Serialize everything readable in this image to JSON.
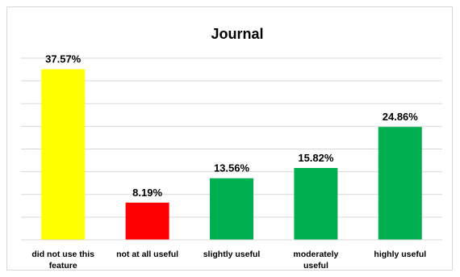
{
  "chart_data": {
    "type": "bar",
    "title": "Journal",
    "categories": [
      [
        "did not use this",
        "feature"
      ],
      [
        "not at all useful"
      ],
      [
        "slightly useful"
      ],
      [
        "moderately",
        "useful"
      ],
      [
        "highly useful"
      ]
    ],
    "values": [
      37.57,
      8.19,
      13.56,
      15.82,
      24.86
    ],
    "data_labels": [
      "37.57%",
      "8.19%",
      "13.56%",
      "15.82%",
      "24.86%"
    ],
    "colors": [
      "#ffff00",
      "#ff0000",
      "#00b050",
      "#00b050",
      "#00b050"
    ],
    "ylim": [
      0,
      40
    ],
    "grid": true,
    "xlabel": "",
    "ylabel": ""
  }
}
